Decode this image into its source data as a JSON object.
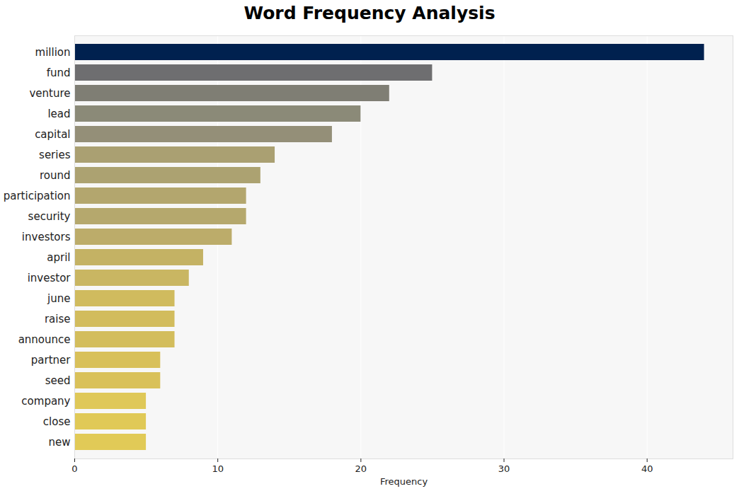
{
  "chart_data": {
    "type": "bar",
    "title": "Word Frequency Analysis",
    "orientation": "horizontal",
    "x_label": "Frequency",
    "categories": [
      "million",
      "fund",
      "venture",
      "lead",
      "capital",
      "series",
      "round",
      "participation",
      "security",
      "investors",
      "april",
      "investor",
      "june",
      "raise",
      "announce",
      "partner",
      "seed",
      "company",
      "close",
      "new"
    ],
    "values": [
      44,
      25,
      22,
      20,
      18,
      14,
      13,
      12,
      12,
      11,
      9,
      8,
      7,
      7,
      7,
      6,
      6,
      5,
      5,
      5
    ],
    "colors": [
      "#00214f",
      "#6e6e70",
      "#7f7e74",
      "#8b8a78",
      "#948f78",
      "#aaa072",
      "#aca271",
      "#b3a66e",
      "#b5a86d",
      "#bcac6a",
      "#c4b264",
      "#c9b662",
      "#d0bb5e",
      "#d2bc5d",
      "#d3bd5c",
      "#d8c05a",
      "#d9c15a",
      "#dfc858",
      "#e0c957",
      "#e1ca57"
    ],
    "xlim": [
      0,
      46
    ],
    "xticks": [
      0,
      10,
      20,
      30,
      40
    ],
    "grid": true
  }
}
